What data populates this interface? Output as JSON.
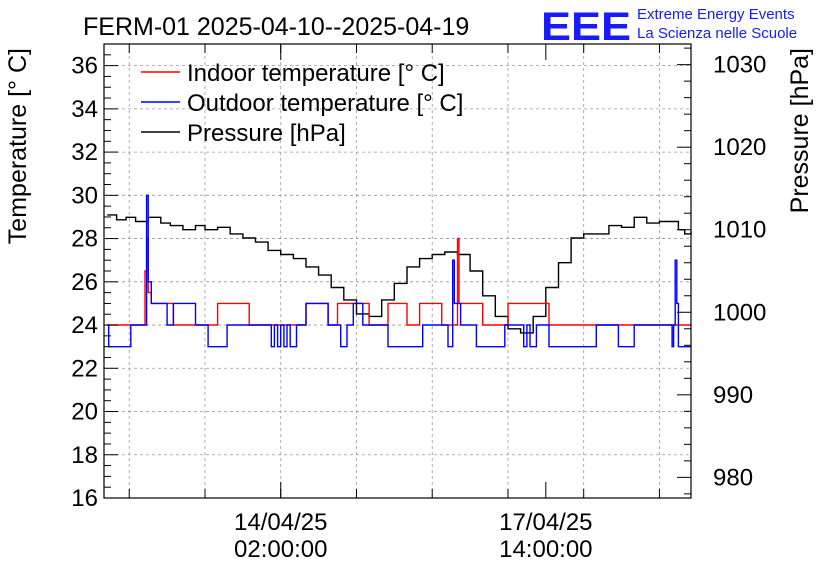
{
  "header": {
    "title": "FERM-01 2025-04-10--2025-04-19",
    "logo_text": "EEE",
    "logo_line1": "Extreme Energy Events",
    "logo_line2": "La Scienza nelle Scuole",
    "logo_color": "#1a1aff"
  },
  "chart_data": {
    "type": "line",
    "ylabel_left": "Temperature [° C]",
    "ylabel_right": "Pressure [hPa]",
    "ylim_left": [
      16,
      37
    ],
    "ylim_right": [
      977.5,
      1032.5
    ],
    "yticks_left": [
      "16",
      "18",
      "20",
      "22",
      "24",
      "26",
      "28",
      "30",
      "32",
      "34",
      "36"
    ],
    "yticks_right": [
      "980",
      "990",
      "1000",
      "1010",
      "1020",
      "1030"
    ],
    "x_range_hours": [
      -56,
      130
    ],
    "xticks": [
      {
        "hours": 0,
        "date": "14/04/25",
        "time": "02:00:00"
      },
      {
        "hours": 84,
        "date": "17/04/25",
        "time": "14:00:00"
      }
    ],
    "grid": true,
    "legend_placement": "top-left",
    "series": [
      {
        "name": "Indoor temperature [° C]",
        "axis": "left",
        "color": "#ff0000",
        "x": [
          -55,
          -44,
          -43.5,
          -43,
          -42.5,
          -42,
          -41,
          -40,
          -36,
          -34,
          -32,
          -30,
          -27,
          -20,
          -19,
          -10,
          -6,
          -5,
          -2,
          0,
          3,
          5,
          5.5,
          7,
          8,
          12,
          15,
          16,
          18,
          19,
          19.5,
          20,
          27,
          28,
          33,
          33.5,
          34,
          35,
          39,
          40,
          43,
          44,
          45,
          50,
          51,
          52,
          53,
          54,
          55,
          56,
          56.5,
          57,
          58,
          63,
          64,
          70,
          70.5,
          71,
          72,
          85,
          90,
          95,
          100,
          106,
          107,
          108,
          109,
          110,
          113,
          114,
          115,
          116,
          117,
          118,
          119,
          120,
          125,
          127,
          130
        ],
        "y": [
          24,
          24,
          24,
          26.5,
          28,
          25.5,
          25,
          25,
          25,
          24,
          24,
          24,
          24,
          25,
          25,
          24,
          24,
          24,
          24,
          24,
          24,
          24,
          24,
          24,
          25,
          25,
          24,
          24,
          25,
          25,
          25,
          25,
          25,
          24,
          24,
          24,
          25,
          25,
          25,
          24,
          24,
          25,
          25,
          25,
          24,
          24,
          24,
          24,
          24,
          28,
          25,
          25,
          25,
          25,
          24,
          24,
          24,
          24,
          25,
          24,
          24,
          24,
          24,
          24,
          24,
          24,
          24,
          24,
          24,
          24,
          24,
          24,
          24,
          24,
          24,
          24,
          24,
          24,
          24
        ]
      },
      {
        "name": "Outdoor temperature [° C]",
        "axis": "left",
        "color": "#0000ff",
        "x": [
          -55,
          -54.5,
          -48,
          -47.5,
          -44,
          -43,
          -42.5,
          -42,
          -41,
          -38,
          -37,
          -36,
          -34,
          -28,
          -27,
          -24,
          -23,
          -18,
          -17,
          -4,
          -3,
          -2,
          -1,
          0,
          1,
          2,
          3,
          4,
          5,
          6,
          7,
          8,
          9,
          14,
          15,
          16,
          19,
          20,
          21,
          22,
          23,
          25,
          26,
          27,
          28,
          33,
          34,
          44,
          45,
          52,
          53,
          54,
          54.5,
          55,
          56,
          57,
          61,
          62,
          70,
          71,
          72,
          73,
          76,
          77,
          78,
          79,
          81,
          82,
          84,
          85,
          98,
          100,
          100.5,
          106,
          107,
          110,
          112,
          113,
          118,
          123,
          124,
          124.5,
          125,
          125.5,
          126,
          130
        ],
        "y": [
          24,
          23,
          23,
          24,
          24,
          24,
          30,
          26,
          25,
          25,
          25,
          24,
          25,
          25,
          24,
          24,
          23,
          23,
          24,
          24,
          23,
          24,
          23,
          24,
          23,
          24,
          23,
          23,
          24,
          24,
          24,
          25,
          25,
          25,
          24,
          24,
          23,
          23,
          24,
          24,
          25,
          25,
          24,
          24,
          24,
          24,
          23,
          23,
          24,
          24,
          23,
          23,
          27,
          25,
          25,
          24,
          24,
          23,
          23,
          24,
          24,
          24,
          24,
          23,
          24,
          23,
          24,
          24,
          24,
          23,
          23,
          24,
          24,
          24,
          23,
          23,
          24,
          24,
          24,
          24,
          23,
          24,
          27,
          25,
          23,
          23
        ]
      },
      {
        "name": "Pressure [hPa]",
        "axis": "right",
        "color": "#000000",
        "x": [
          -55,
          -52,
          -49,
          -46,
          -42,
          -38,
          -35,
          -31,
          -27,
          -24,
          -20,
          -16,
          -12,
          -8,
          -4,
          0,
          4,
          8,
          12,
          16,
          20,
          24,
          28,
          32,
          36,
          40,
          44,
          48,
          52,
          56,
          60,
          64,
          68,
          72,
          76,
          80,
          84,
          88,
          92,
          96,
          100,
          104,
          108,
          112,
          116,
          120,
          124,
          126,
          128,
          130
        ],
        "y": [
          1011.8,
          1011.2,
          1011.5,
          1011.0,
          1011.5,
          1010.8,
          1010.5,
          1010.0,
          1010.5,
          1010.0,
          1010.3,
          1009.5,
          1009.0,
          1008.5,
          1007.5,
          1007.0,
          1006.5,
          1005.5,
          1004.5,
          1003.0,
          1001.5,
          999.8,
          999.5,
          1001.5,
          1003.5,
          1005.5,
          1006.5,
          1007.0,
          1007.3,
          1007.0,
          1005.0,
          1002.0,
          999.5,
          998.0,
          997.5,
          999.5,
          1003.0,
          1006.0,
          1009.0,
          1009.5,
          1009.5,
          1010.5,
          1010.3,
          1011.5,
          1010.8,
          1011.0,
          1011.0,
          1010.0,
          1009.5,
          1009.8
        ]
      }
    ]
  }
}
